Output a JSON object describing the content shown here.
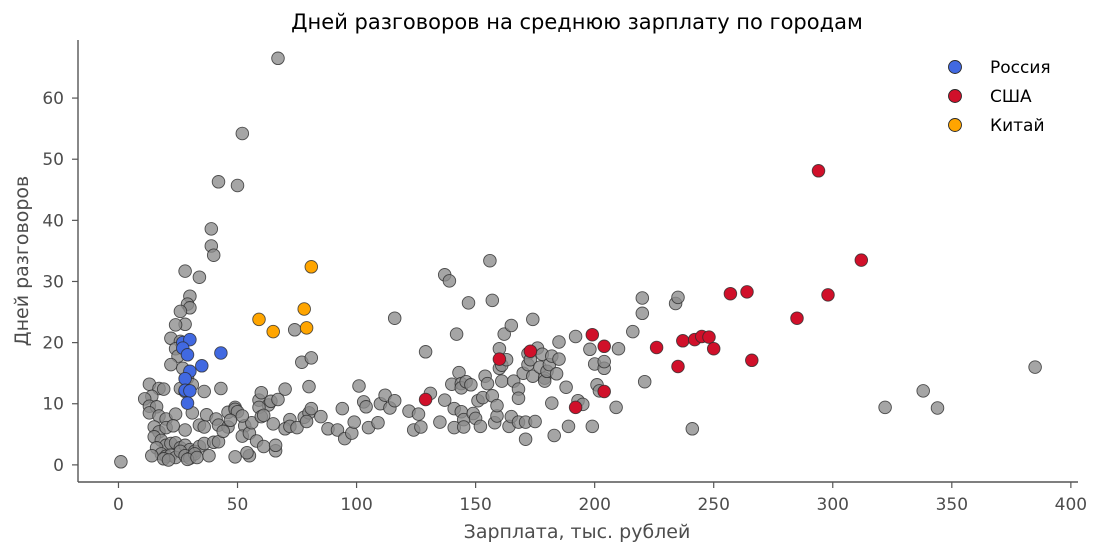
{
  "chart_data": {
    "type": "scatter",
    "title": "Дней разговоров на среднюю зарплату по городам",
    "xlabel": "Зарплата, тыс. рублей",
    "ylabel": "Дней разговоров",
    "xlim": [
      -17,
      403
    ],
    "ylim": [
      -2.8,
      69.5
    ],
    "xticks": [
      0,
      50,
      100,
      150,
      200,
      250,
      300,
      350,
      400
    ],
    "yticks": [
      0,
      10,
      20,
      30,
      40,
      50,
      60
    ],
    "grid": false,
    "legend_position": "top-right",
    "colors": {
      "other": "#8c8c8c",
      "Россия": "#4169e1",
      "США": "#d0102a",
      "Китай": "#ffa500"
    },
    "series": [
      {
        "name": "",
        "color": "#8c8c8c",
        "points": [
          [
            1,
            0.5
          ],
          [
            67,
            66.5
          ],
          [
            52,
            54.2
          ],
          [
            42,
            46.3
          ],
          [
            50,
            45.7
          ],
          [
            39,
            38.6
          ],
          [
            39,
            35.8
          ],
          [
            40,
            34.3
          ],
          [
            28,
            31.7
          ],
          [
            34,
            30.7
          ],
          [
            30,
            27.6
          ],
          [
            29,
            26.3
          ],
          [
            30,
            25.7
          ],
          [
            26,
            25.1
          ],
          [
            28,
            23
          ],
          [
            24,
            22.9
          ],
          [
            22,
            20.7
          ],
          [
            26,
            20.2
          ],
          [
            24,
            19
          ],
          [
            25,
            17.8
          ],
          [
            22,
            16.4
          ],
          [
            27,
            15.8
          ],
          [
            29,
            14.2
          ],
          [
            31,
            13.1
          ],
          [
            26,
            12.5
          ],
          [
            28,
            12
          ],
          [
            36,
            12
          ],
          [
            43,
            12.5
          ],
          [
            13,
            13.2
          ],
          [
            17,
            12.5
          ],
          [
            19,
            12.4
          ],
          [
            14,
            11.2
          ],
          [
            11,
            10.8
          ],
          [
            13,
            9.6
          ],
          [
            16,
            9.5
          ],
          [
            13,
            8.5
          ],
          [
            17,
            8
          ],
          [
            20,
            7.5
          ],
          [
            24,
            8.3
          ],
          [
            31,
            8.5
          ],
          [
            37,
            8.2
          ],
          [
            41,
            7.5
          ],
          [
            46,
            8.6
          ],
          [
            49,
            9.4
          ],
          [
            15,
            6.2
          ],
          [
            17,
            5.4
          ],
          [
            20,
            6.1
          ],
          [
            23,
            6.4
          ],
          [
            28,
            5.7
          ],
          [
            34,
            6.5
          ],
          [
            36,
            6.2
          ],
          [
            42,
            6.5
          ],
          [
            46,
            6.2
          ],
          [
            53,
            6.4
          ],
          [
            15,
            4.6
          ],
          [
            18,
            4
          ],
          [
            20,
            3.2
          ],
          [
            22,
            3.5
          ],
          [
            24,
            3.6
          ],
          [
            26,
            2.8
          ],
          [
            28,
            3.2
          ],
          [
            30,
            2.5
          ],
          [
            32,
            2.2
          ],
          [
            34,
            3
          ],
          [
            36,
            3.5
          ],
          [
            40,
            3.7
          ],
          [
            42,
            3.8
          ],
          [
            16,
            2.8
          ],
          [
            18,
            1.8
          ],
          [
            20,
            1.4
          ],
          [
            22,
            1.6
          ],
          [
            24,
            1.2
          ],
          [
            26,
            2.2
          ],
          [
            28,
            1.5
          ],
          [
            30,
            1.1
          ],
          [
            32,
            1.8
          ],
          [
            14,
            1.5
          ],
          [
            19,
            1
          ],
          [
            21,
            0.8
          ],
          [
            29,
            0.9
          ],
          [
            33,
            1.2
          ],
          [
            38,
            1.5
          ],
          [
            49,
            1.3
          ],
          [
            55,
            1.5
          ],
          [
            52,
            4.7
          ],
          [
            55,
            5.2
          ],
          [
            56,
            6.9
          ],
          [
            54,
            2
          ],
          [
            58,
            3.9
          ],
          [
            61,
            3
          ],
          [
            66,
            2.3
          ],
          [
            66,
            3.2
          ],
          [
            59,
            10.6
          ],
          [
            60,
            11.8
          ],
          [
            63,
            9.8
          ],
          [
            64,
            10.4
          ],
          [
            59,
            9.4
          ],
          [
            49,
            9.1
          ],
          [
            50,
            8.7
          ],
          [
            52,
            8
          ],
          [
            47,
            7.3
          ],
          [
            44,
            5.5
          ],
          [
            65,
            6.7
          ],
          [
            60,
            7.9
          ],
          [
            61,
            8.1
          ],
          [
            67,
            10.7
          ],
          [
            70,
            12.4
          ],
          [
            72,
            7.4
          ],
          [
            70,
            5.9
          ],
          [
            72,
            6.3
          ],
          [
            75,
            6.1
          ],
          [
            78,
            7.8
          ],
          [
            80,
            8.5
          ],
          [
            81,
            9.2
          ],
          [
            79,
            7.1
          ],
          [
            74,
            22.1
          ],
          [
            77,
            16.8
          ],
          [
            81,
            17.5
          ],
          [
            80,
            12.8
          ],
          [
            85,
            7.9
          ],
          [
            88,
            5.9
          ],
          [
            92,
            5.7
          ],
          [
            94,
            9.2
          ],
          [
            95,
            4.3
          ],
          [
            98,
            5.2
          ],
          [
            99,
            7
          ],
          [
            101,
            12.9
          ],
          [
            103,
            10.3
          ],
          [
            104,
            9.5
          ],
          [
            105,
            6.1
          ],
          [
            109,
            6.9
          ],
          [
            110,
            10
          ],
          [
            112,
            11.4
          ],
          [
            114,
            9.3
          ],
          [
            116,
            10.5
          ],
          [
            116,
            24
          ],
          [
            122,
            8.8
          ],
          [
            124,
            5.7
          ],
          [
            126,
            8.3
          ],
          [
            127,
            6.2
          ],
          [
            129,
            18.5
          ],
          [
            131,
            11.7
          ],
          [
            135,
            7
          ],
          [
            137,
            10.6
          ],
          [
            137,
            31.1
          ],
          [
            139,
            30.1
          ],
          [
            140,
            13.2
          ],
          [
            141,
            9.2
          ],
          [
            141,
            6.1
          ],
          [
            142,
            21.4
          ],
          [
            143,
            15.1
          ],
          [
            144,
            13.3
          ],
          [
            144,
            12.6
          ],
          [
            144,
            8.7
          ],
          [
            145,
            7.4
          ],
          [
            145,
            6.2
          ],
          [
            146,
            13.6
          ],
          [
            147,
            26.5
          ],
          [
            148,
            13.1
          ],
          [
            149,
            8.4
          ],
          [
            150,
            7.6
          ],
          [
            151,
            10.5
          ],
          [
            152,
            6.3
          ],
          [
            153,
            11
          ],
          [
            154,
            14.5
          ],
          [
            155,
            13.3
          ],
          [
            156,
            33.4
          ],
          [
            157,
            26.9
          ],
          [
            157,
            11.3
          ],
          [
            158,
            6.9
          ],
          [
            159,
            8
          ],
          [
            159,
            9.7
          ],
          [
            160,
            19
          ],
          [
            160,
            15.8
          ],
          [
            161,
            16.3
          ],
          [
            161,
            13.7
          ],
          [
            162,
            21.4
          ],
          [
            163,
            17.2
          ],
          [
            164,
            6.3
          ],
          [
            165,
            22.8
          ],
          [
            165,
            7.9
          ],
          [
            166,
            13.7
          ],
          [
            168,
            12.4
          ],
          [
            168,
            10.9
          ],
          [
            168,
            7
          ],
          [
            170,
            15
          ],
          [
            171,
            4.2
          ],
          [
            171,
            7
          ],
          [
            172,
            18.2
          ],
          [
            172,
            16.4
          ],
          [
            173,
            17.2
          ],
          [
            174,
            14.5
          ],
          [
            174,
            23.8
          ],
          [
            175,
            7.1
          ],
          [
            176,
            19.1
          ],
          [
            177,
            16
          ],
          [
            178,
            18.1
          ],
          [
            179,
            14.2
          ],
          [
            179,
            13.7
          ],
          [
            180,
            15.3
          ],
          [
            181,
            16.4
          ],
          [
            182,
            17.8
          ],
          [
            182,
            10.1
          ],
          [
            183,
            4.8
          ],
          [
            184,
            14.9
          ],
          [
            185,
            17.3
          ],
          [
            185,
            20.1
          ],
          [
            188,
            12.7
          ],
          [
            189,
            6.3
          ],
          [
            192,
            21
          ],
          [
            193,
            10.5
          ],
          [
            195,
            9.9
          ],
          [
            198,
            18.9
          ],
          [
            199,
            6.3
          ],
          [
            200,
            16.5
          ],
          [
            201,
            13.1
          ],
          [
            202,
            12.1
          ],
          [
            204,
            15.8
          ],
          [
            204,
            16.9
          ],
          [
            209,
            9.4
          ],
          [
            210,
            19
          ],
          [
            216,
            21.8
          ],
          [
            220,
            27.3
          ],
          [
            220,
            24.8
          ],
          [
            221,
            13.6
          ],
          [
            234,
            26.4
          ],
          [
            235,
            27.4
          ],
          [
            241,
            5.9
          ],
          [
            322,
            9.4
          ],
          [
            338,
            12.1
          ],
          [
            344,
            9.3
          ],
          [
            385,
            16
          ]
        ]
      },
      {
        "name": "Россия",
        "color": "#4169e1",
        "points": [
          [
            27,
            20
          ],
          [
            30,
            20.5
          ],
          [
            27,
            19.1
          ],
          [
            29,
            18
          ],
          [
            35,
            16.2
          ],
          [
            30,
            15.3
          ],
          [
            28,
            14.1
          ],
          [
            28,
            12.2
          ],
          [
            30,
            12.1
          ],
          [
            29,
            10.1
          ],
          [
            43,
            18.3
          ]
        ]
      },
      {
        "name": "США",
        "color": "#d0102a",
        "points": [
          [
            129,
            10.7
          ],
          [
            160,
            17.3
          ],
          [
            173,
            18.6
          ],
          [
            192,
            9.4
          ],
          [
            199,
            21.3
          ],
          [
            204,
            19.4
          ],
          [
            204,
            12
          ],
          [
            226,
            19.2
          ],
          [
            235,
            16.1
          ],
          [
            237,
            20.3
          ],
          [
            242,
            20.5
          ],
          [
            245,
            21
          ],
          [
            248,
            20.9
          ],
          [
            250,
            19
          ],
          [
            257,
            28
          ],
          [
            264,
            28.3
          ],
          [
            266,
            17.1
          ],
          [
            285,
            24
          ],
          [
            294,
            48.1
          ],
          [
            298,
            27.8
          ],
          [
            312,
            33.5
          ]
        ]
      },
      {
        "name": "Китай",
        "color": "#ffa500",
        "points": [
          [
            59,
            23.8
          ],
          [
            65,
            21.8
          ],
          [
            78,
            25.5
          ],
          [
            79,
            22.4
          ],
          [
            81,
            32.4
          ]
        ]
      }
    ]
  }
}
